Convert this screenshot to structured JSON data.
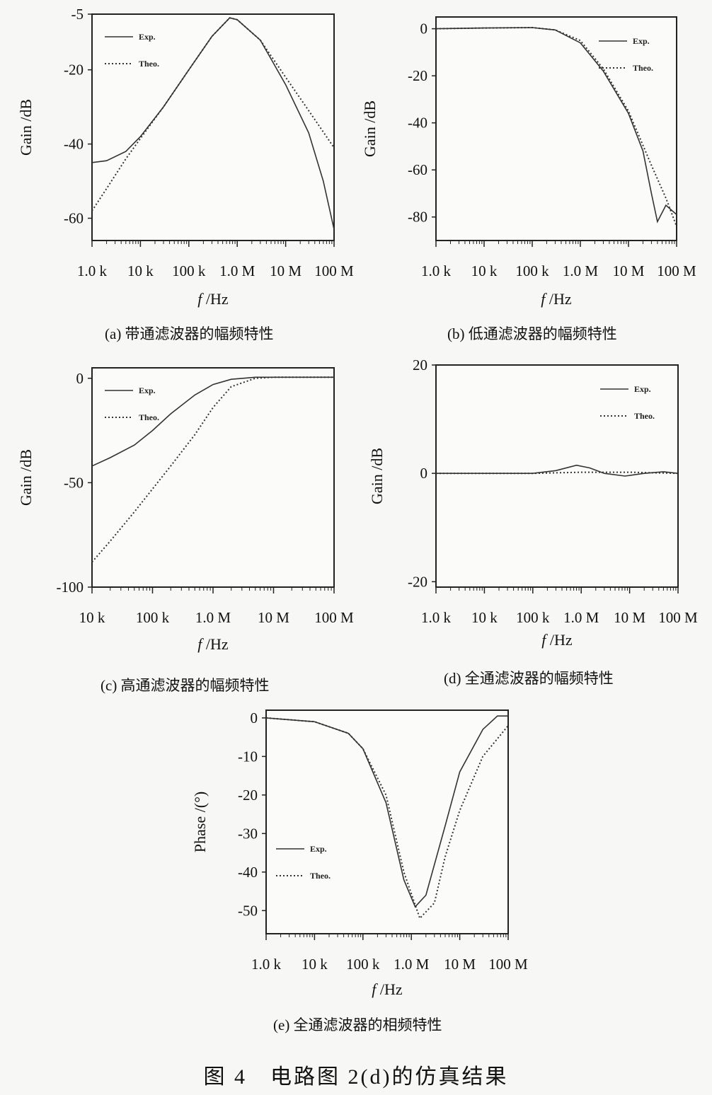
{
  "figure_caption": "图 4　电路图 2(d)的仿真结果",
  "chart_data": [
    {
      "type": "line",
      "caption": "(a)  带通滤波器的幅频特性",
      "xlabel": "f /Hz",
      "ylabel": "Gain /dB",
      "x_scale": "log",
      "xlim": [
        1000,
        100000000
      ],
      "ylim": [
        -66,
        -5
      ],
      "xticks": [
        1000,
        10000,
        100000,
        1000000,
        10000000,
        100000000
      ],
      "xtick_labels": [
        "1.0 k",
        "10 k",
        "100 k",
        "1.0 M",
        "10 M",
        "100 M"
      ],
      "yticks": [
        -5,
        -20,
        -40,
        -60
      ],
      "ytick_labels": [
        "-5",
        "-20",
        "-40",
        "-60"
      ],
      "legend": "top-left",
      "series": [
        {
          "name": "Exp.",
          "style": "solid",
          "x": [
            1000,
            2000,
            5000,
            10000,
            30000,
            100000,
            300000,
            700000,
            1000000,
            3000000,
            10000000,
            30000000,
            60000000,
            100000000
          ],
          "y": [
            -45,
            -44.5,
            -42,
            -38,
            -30,
            -20,
            -11,
            -6,
            -6.5,
            -12,
            -24,
            -37,
            -50,
            -63
          ]
        },
        {
          "name": "Theo.",
          "style": "dotted",
          "x": [
            1000,
            2000,
            5000,
            10000,
            30000,
            100000,
            300000,
            700000,
            1000000,
            3000000,
            10000000,
            30000000,
            100000000
          ],
          "y": [
            -58,
            -52,
            -44,
            -38.5,
            -30,
            -20,
            -11,
            -6,
            -6.5,
            -12,
            -22,
            -31,
            -41
          ]
        }
      ]
    },
    {
      "type": "line",
      "caption": "(b)  低通滤波器的幅频特性",
      "xlabel": "f /Hz",
      "ylabel": "Gain /dB",
      "x_scale": "log",
      "xlim": [
        1000,
        100000000
      ],
      "ylim": [
        -90,
        5
      ],
      "xticks": [
        1000,
        10000,
        100000,
        1000000,
        10000000,
        100000000
      ],
      "xtick_labels": [
        "1.0 k",
        "10 k",
        "100 k",
        "1.0 M",
        "10 M",
        "100 M"
      ],
      "yticks": [
        0,
        -20,
        -40,
        -60,
        -80
      ],
      "ytick_labels": [
        "0",
        "-20",
        "-40",
        "-60",
        "-80"
      ],
      "legend": "top-right",
      "series": [
        {
          "name": "Exp.",
          "style": "solid",
          "x": [
            1000,
            10000,
            100000,
            300000,
            1000000,
            3000000,
            10000000,
            20000000,
            30000000,
            40000000,
            60000000,
            100000000
          ],
          "y": [
            0,
            0.3,
            0.5,
            -0.5,
            -6,
            -18,
            -36,
            -52,
            -70,
            -82,
            -75,
            -79
          ]
        },
        {
          "name": "Theo.",
          "style": "dotted",
          "x": [
            1000,
            10000,
            100000,
            300000,
            1000000,
            3000000,
            10000000,
            30000000,
            60000000,
            100000000
          ],
          "y": [
            0,
            0.3,
            0.5,
            -0.5,
            -5,
            -17,
            -35,
            -58,
            -72,
            -84
          ]
        }
      ]
    },
    {
      "type": "line",
      "caption": "(c)  高通滤波器的幅频特性",
      "xlabel": "f /Hz",
      "ylabel": "Gain /dB",
      "x_scale": "log",
      "xlim": [
        10000,
        100000000
      ],
      "ylim": [
        -100,
        5
      ],
      "xticks": [
        10000,
        100000,
        1000000,
        10000000,
        100000000
      ],
      "xtick_labels": [
        "10 k",
        "100 k",
        "1.0 M",
        "10 M",
        "100 M"
      ],
      "yticks": [
        0,
        -50,
        -100
      ],
      "ytick_labels": [
        "0",
        "-50",
        "-100"
      ],
      "legend": "top-left",
      "series": [
        {
          "name": "Exp.",
          "style": "solid",
          "x": [
            10000,
            20000,
            50000,
            100000,
            200000,
            500000,
            1000000,
            2000000,
            5000000,
            10000000,
            100000000
          ],
          "y": [
            -42,
            -38,
            -32,
            -25,
            -17,
            -8,
            -3,
            -0.5,
            0.5,
            0.5,
            0.5
          ]
        },
        {
          "name": "Theo.",
          "style": "dotted",
          "x": [
            10000,
            20000,
            50000,
            100000,
            200000,
            500000,
            1000000,
            2000000,
            5000000,
            10000000,
            100000000
          ],
          "y": [
            -88,
            -78,
            -64,
            -53,
            -42,
            -27,
            -14,
            -4,
            0,
            0.5,
            0.5
          ]
        }
      ]
    },
    {
      "type": "line",
      "caption": "(d)  全通滤波器的幅频特性",
      "xlabel": "f /Hz",
      "ylabel": "Gain /dB",
      "x_scale": "log",
      "xlim": [
        1000,
        100000000
      ],
      "ylim": [
        -21,
        20
      ],
      "xticks": [
        1000,
        10000,
        100000,
        1000000,
        10000000,
        100000000
      ],
      "xtick_labels": [
        "1.0 k",
        "10 k",
        "100 k",
        "1.0 M",
        "10 M",
        "100 M"
      ],
      "yticks": [
        20,
        0,
        -20
      ],
      "ytick_labels": [
        "20",
        "0",
        "-20"
      ],
      "legend": "top-right",
      "series": [
        {
          "name": "Exp.",
          "style": "solid",
          "x": [
            1000,
            10000,
            100000,
            300000,
            800000,
            1500000,
            3000000,
            8000000,
            20000000,
            50000000,
            100000000
          ],
          "y": [
            0,
            0,
            0,
            0.5,
            1.5,
            1,
            0,
            -0.5,
            0,
            0.3,
            0
          ]
        },
        {
          "name": "Theo.",
          "style": "dotted",
          "x": [
            1000,
            10000,
            100000,
            1000000,
            10000000,
            100000000
          ],
          "y": [
            0,
            0,
            0,
            0.2,
            0.2,
            0
          ]
        }
      ]
    },
    {
      "type": "line",
      "caption": "(e)  全通滤波器的相频特性",
      "xlabel": "f /Hz",
      "ylabel": "Phase /(°)",
      "x_scale": "log",
      "xlim": [
        1000,
        100000000
      ],
      "ylim": [
        -56,
        2
      ],
      "xticks": [
        1000,
        10000,
        100000,
        1000000,
        10000000,
        100000000
      ],
      "xtick_labels": [
        "1.0 k",
        "10 k",
        "100 k",
        "1.0 M",
        "10 M",
        "100 M"
      ],
      "yticks": [
        0,
        -10,
        -20,
        -30,
        -40,
        -50
      ],
      "ytick_labels": [
        "0",
        "-10",
        "-20",
        "-30",
        "-40",
        "-50"
      ],
      "legend": "bottom-left",
      "series": [
        {
          "name": "Exp.",
          "style": "solid",
          "x": [
            1000,
            10000,
            50000,
            100000,
            300000,
            700000,
            1200000,
            2000000,
            5000000,
            10000000,
            30000000,
            60000000,
            100000000
          ],
          "y": [
            0,
            -1,
            -4,
            -8,
            -22,
            -42,
            -49,
            -46,
            -28,
            -14,
            -3,
            0.5,
            0.5
          ]
        },
        {
          "name": "Theo.",
          "style": "dotted",
          "x": [
            1000,
            10000,
            50000,
            100000,
            300000,
            700000,
            1500000,
            3000000,
            5000000,
            10000000,
            30000000,
            100000000
          ],
          "y": [
            0,
            -1,
            -4,
            -8,
            -20,
            -40,
            -52,
            -48,
            -36,
            -24,
            -10,
            -2
          ]
        }
      ]
    }
  ]
}
